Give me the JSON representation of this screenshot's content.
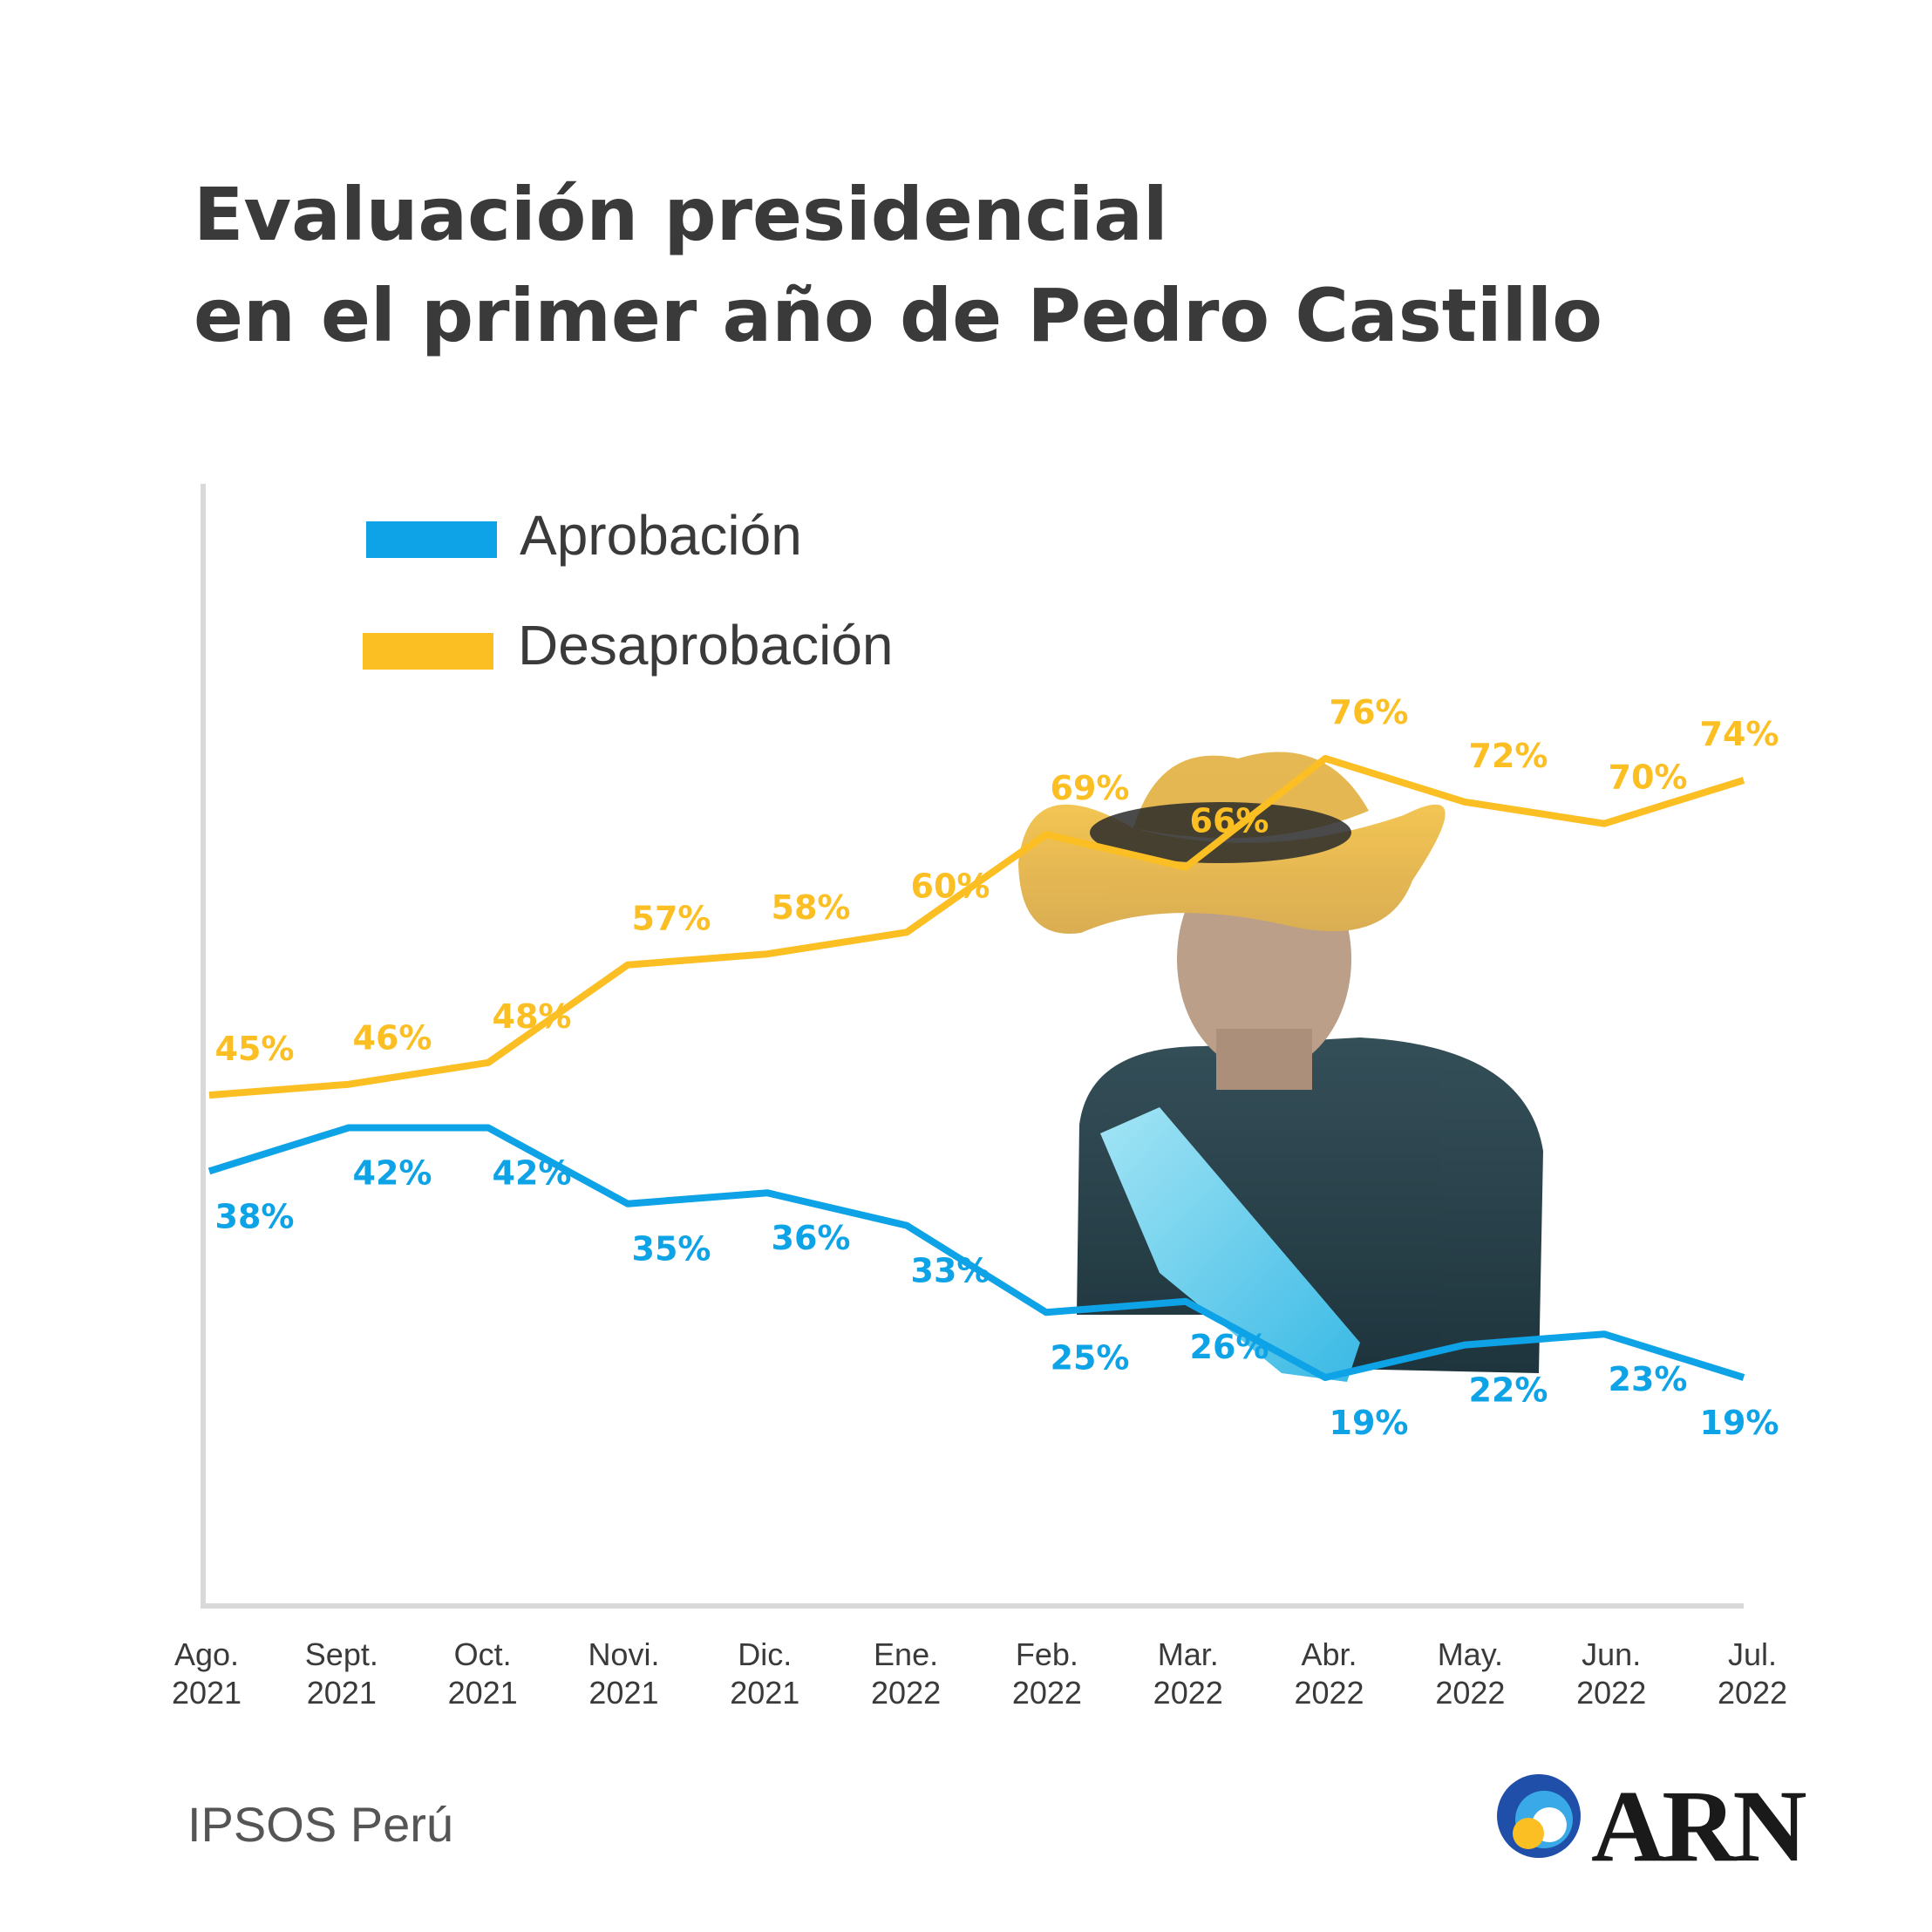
{
  "title_line1": "Evaluación presidencial",
  "title_line2": "en el primer año de Pedro Castillo",
  "source": "IPSOS Perú",
  "brand": "ARN",
  "colors": {
    "approval": "#0ea2e6",
    "disapproval": "#fbbf24",
    "axis": "#d9d9d9",
    "text": "#3a3a3a"
  },
  "chart_data": {
    "type": "line",
    "categories": [
      [
        "Ago.",
        "2021"
      ],
      [
        "Sept.",
        "2021"
      ],
      [
        "Oct.",
        "2021"
      ],
      [
        "Novi.",
        "2021"
      ],
      [
        "Dic.",
        "2021"
      ],
      [
        "Ene.",
        "2022"
      ],
      [
        "Feb.",
        "2022"
      ],
      [
        "Mar.",
        "2022"
      ],
      [
        "Abr.",
        "2022"
      ],
      [
        "May.",
        "2022"
      ],
      [
        "Jun.",
        "2022"
      ],
      [
        "Jul.",
        "2022"
      ]
    ],
    "series": [
      {
        "name": "Aprobación",
        "values": [
          38,
          42,
          42,
          35,
          36,
          33,
          25,
          26,
          19,
          22,
          23,
          19
        ],
        "labels": [
          "38%",
          "42%",
          "42%",
          "35%",
          "36%",
          "33%",
          "25%",
          "26%",
          "19%",
          "22%",
          "23%",
          "19%"
        ]
      },
      {
        "name": "Desaprobación",
        "values": [
          45,
          46,
          48,
          57,
          58,
          60,
          69,
          66,
          76,
          72,
          70,
          74
        ],
        "labels": [
          "45%",
          "46%",
          "48%",
          "57%",
          "58%",
          "60%",
          "69%",
          "66%",
          "76%",
          "72%",
          "70%",
          "74%"
        ]
      }
    ],
    "legend_position": "top-left",
    "grid": false
  }
}
